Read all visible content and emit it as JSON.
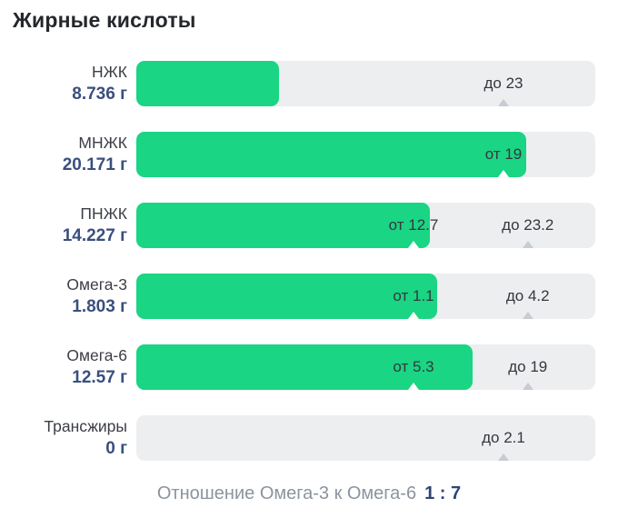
{
  "title": "Жирные кислоты",
  "colors": {
    "fill_green": "#1ad583",
    "track_gray": "#edeef0",
    "value_navy": "#3a4f7e",
    "marker_gray": "#c9cbd2",
    "title_dark": "#24272c",
    "footer_gray": "#8b949e"
  },
  "rows": [
    {
      "name": "НЖК",
      "value": "8.736 г",
      "fill_pct": 31.1,
      "markers": [
        {
          "text": "до 23",
          "pos_pct": 80.0
        }
      ]
    },
    {
      "name": "МНЖК",
      "value": "20.171 г",
      "fill_pct": 85.0,
      "markers": [
        {
          "text": "от 19",
          "pos_pct": 80.0
        }
      ]
    },
    {
      "name": "ПНЖК",
      "value": "14.227 г",
      "fill_pct": 64.0,
      "markers": [
        {
          "text": "от 12.7",
          "pos_pct": 60.4
        },
        {
          "text": "до 23.2",
          "pos_pct": 85.3
        }
      ]
    },
    {
      "name": "Омега-3",
      "value": "1.803 г",
      "fill_pct": 65.5,
      "markers": [
        {
          "text": "от 1.1",
          "pos_pct": 60.4
        },
        {
          "text": "до 4.2",
          "pos_pct": 85.3
        }
      ]
    },
    {
      "name": "Омега-6",
      "value": "12.57 г",
      "fill_pct": 73.3,
      "markers": [
        {
          "text": "от 5.3",
          "pos_pct": 60.4
        },
        {
          "text": "до 19",
          "pos_pct": 85.3
        }
      ]
    },
    {
      "name": "Трансжиры",
      "value": "0 г",
      "fill_pct": 0,
      "markers": [
        {
          "text": "до 2.1",
          "pos_pct": 80.0
        }
      ]
    }
  ],
  "footer": {
    "label": "Отношение Омега-3 к Омега-6",
    "ratio": "1 : 7"
  },
  "chart_data": {
    "type": "bar",
    "orientation": "horizontal",
    "title": "Жирные кислоты",
    "categories": [
      "НЖК",
      "МНЖК",
      "ПНЖК",
      "Омега-3",
      "Омега-6",
      "Трансжиры"
    ],
    "values": [
      8.736,
      20.171,
      14.227,
      1.803,
      12.57,
      0
    ],
    "unit": "г",
    "norms": [
      {
        "max": 23
      },
      {
        "min": 19
      },
      {
        "min": 12.7,
        "max": 23.2
      },
      {
        "min": 1.1,
        "max": 4.2
      },
      {
        "min": 5.3,
        "max": 19
      },
      {
        "max": 2.1
      }
    ],
    "annotation": "Отношение Омега-3 к Омега-6 1 : 7",
    "legend_position": "none",
    "grid": false
  }
}
